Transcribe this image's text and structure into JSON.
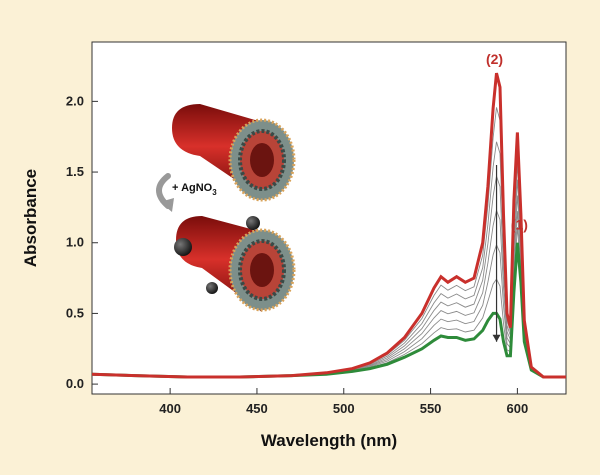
{
  "chart_data": {
    "type": "line",
    "xlabel": "Wavelength (nm)",
    "ylabel": "Absorbance",
    "xlim": [
      355,
      628
    ],
    "ylim": [
      -0.07,
      2.42
    ],
    "x_ticks": [
      400,
      450,
      500,
      550,
      600
    ],
    "y_ticks": [
      0.0,
      0.5,
      1.0,
      1.5,
      2.0
    ],
    "x_tick_labels": [
      "400",
      "450",
      "500",
      "550",
      "600"
    ],
    "y_tick_labels": [
      "0.0",
      "0.5",
      "1.0",
      "1.5",
      "2.0"
    ],
    "grid": false,
    "series": [
      {
        "name": "(2)",
        "label": "(2)",
        "color": "#c9302c",
        "x": [
          355,
          380,
          410,
          440,
          470,
          490,
          505,
          515,
          525,
          535,
          545,
          552,
          556,
          560,
          565,
          570,
          575,
          580,
          583,
          586,
          588,
          590,
          592,
          594,
          596,
          598,
          600,
          602,
          604,
          608,
          615,
          628
        ],
        "y": [
          0.07,
          0.06,
          0.05,
          0.05,
          0.06,
          0.08,
          0.11,
          0.15,
          0.22,
          0.33,
          0.5,
          0.68,
          0.76,
          0.72,
          0.76,
          0.72,
          0.75,
          1.0,
          1.4,
          1.95,
          2.2,
          2.1,
          1.2,
          0.5,
          0.4,
          1.3,
          1.78,
          1.2,
          0.45,
          0.12,
          0.05,
          0.05
        ]
      },
      {
        "name": "(1)",
        "label": "(1)",
        "color": "#2e8b3a",
        "x": [
          355,
          380,
          410,
          440,
          470,
          490,
          505,
          515,
          525,
          535,
          545,
          552,
          556,
          560,
          565,
          570,
          575,
          580,
          583,
          586,
          588,
          590,
          592,
          594,
          596,
          598,
          600,
          602,
          604,
          608,
          615,
          628
        ],
        "y": [
          0.07,
          0.06,
          0.05,
          0.05,
          0.06,
          0.07,
          0.09,
          0.11,
          0.14,
          0.19,
          0.25,
          0.31,
          0.34,
          0.33,
          0.33,
          0.31,
          0.32,
          0.38,
          0.45,
          0.5,
          0.5,
          0.46,
          0.3,
          0.2,
          0.2,
          0.65,
          1.0,
          0.72,
          0.3,
          0.1,
          0.05,
          0.05
        ]
      }
    ],
    "intermediate_count": 6,
    "intermediate_color": "#8a8a8a",
    "arrow": {
      "x": 588,
      "y_start": 1.55,
      "y_end": 0.3
    }
  },
  "inset": {
    "reagent": "+ AgNO",
    "reagent_subscript": "3",
    "tube_color": "#c0201d",
    "particle_color": "#2a2a2a"
  }
}
